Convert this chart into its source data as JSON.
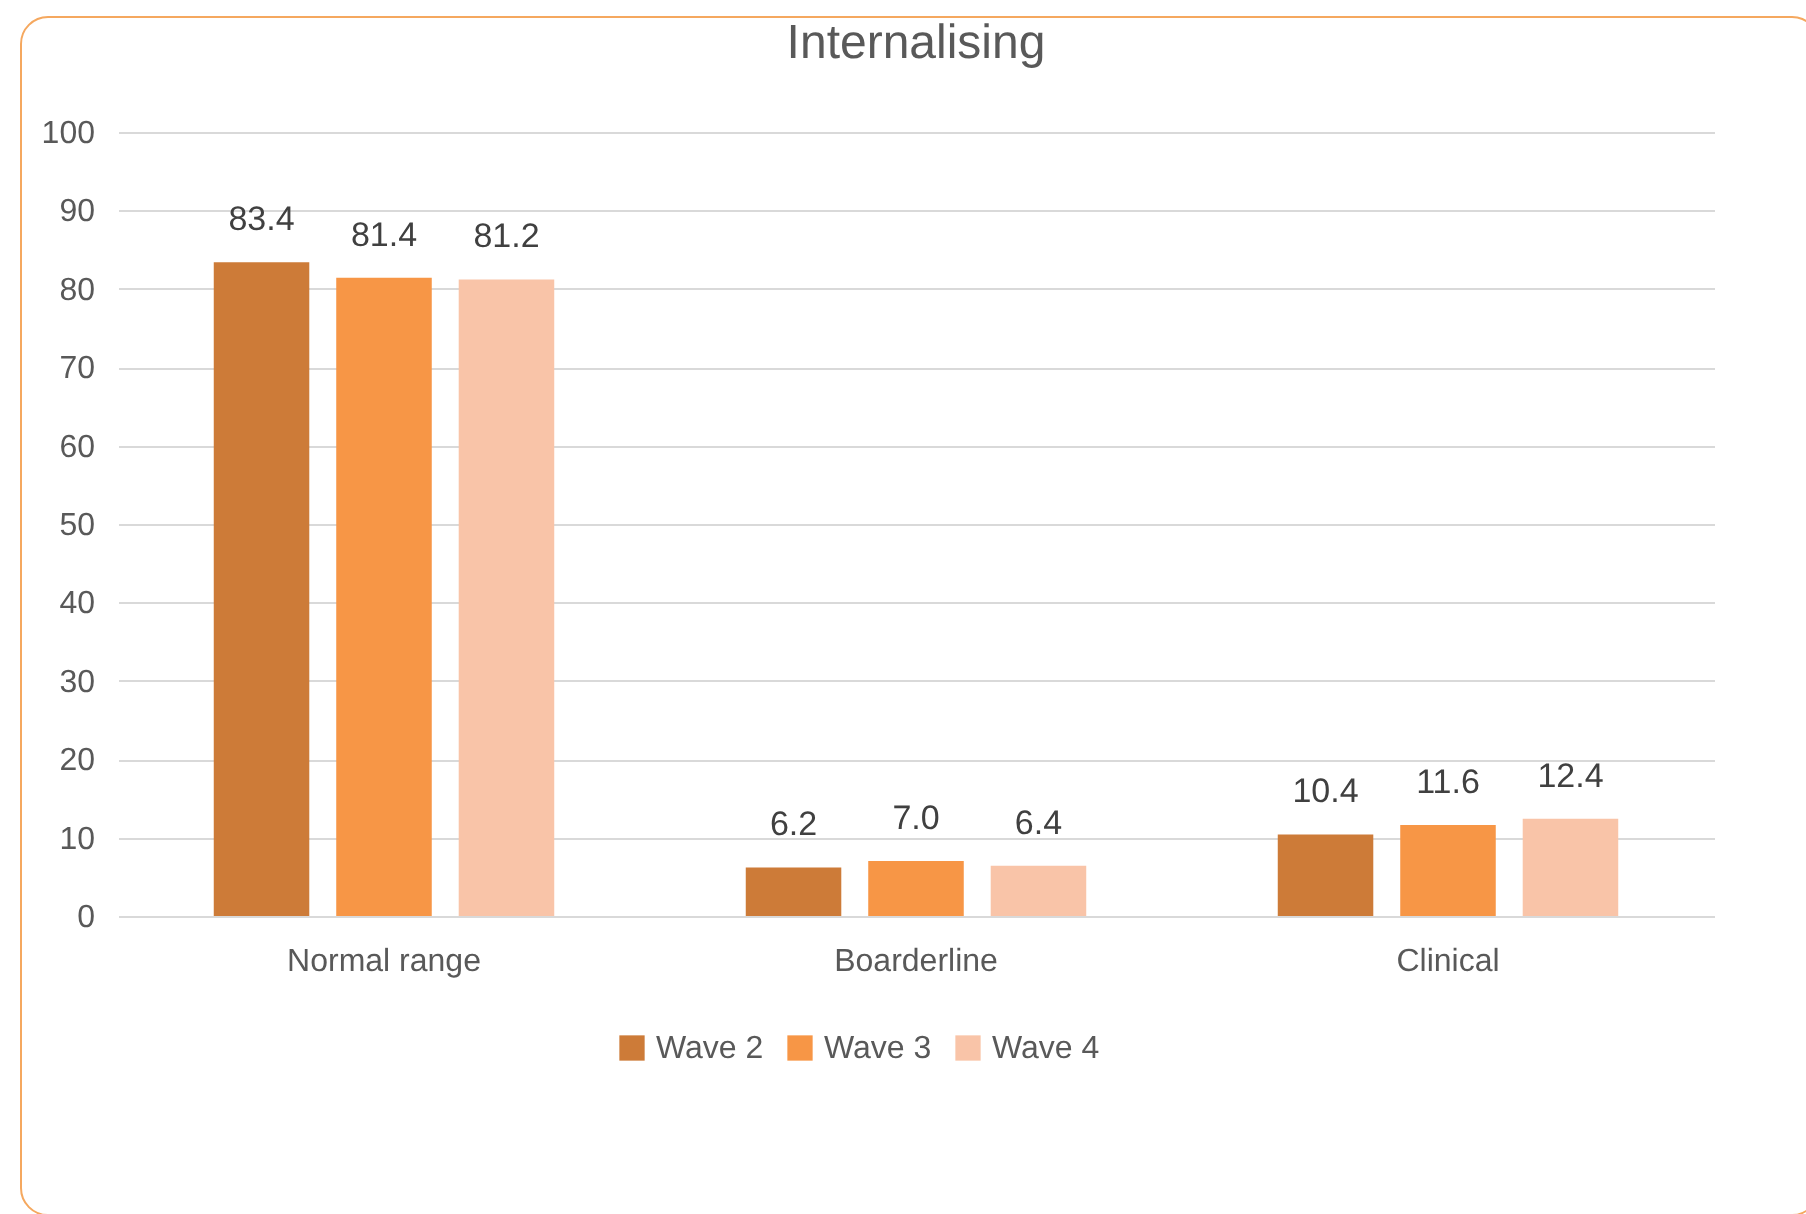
{
  "chart_data": {
    "type": "bar",
    "title": "Internalising",
    "categories": [
      "Normal range",
      "Boarderline",
      "Clinical"
    ],
    "series": [
      {
        "name": "Wave 2",
        "color": "#cd7b38",
        "values": [
          83.4,
          6.2,
          10.4
        ],
        "value_labels": [
          "83.4",
          "6.2",
          "10.4"
        ]
      },
      {
        "name": "Wave 3",
        "color": "#f79646",
        "values": [
          81.4,
          7.0,
          11.6
        ],
        "value_labels": [
          "81.4",
          "7.0",
          "11.6"
        ]
      },
      {
        "name": "Wave 4",
        "color": "#f9c4a8",
        "values": [
          81.2,
          6.4,
          12.4
        ],
        "value_labels": [
          "81.2",
          "6.4",
          "12.4"
        ]
      }
    ],
    "ylim": [
      0,
      100
    ],
    "yticks": [
      0,
      10,
      20,
      30,
      40,
      50,
      60,
      70,
      80,
      90,
      100
    ],
    "grid": "y",
    "legend": "bottom"
  }
}
